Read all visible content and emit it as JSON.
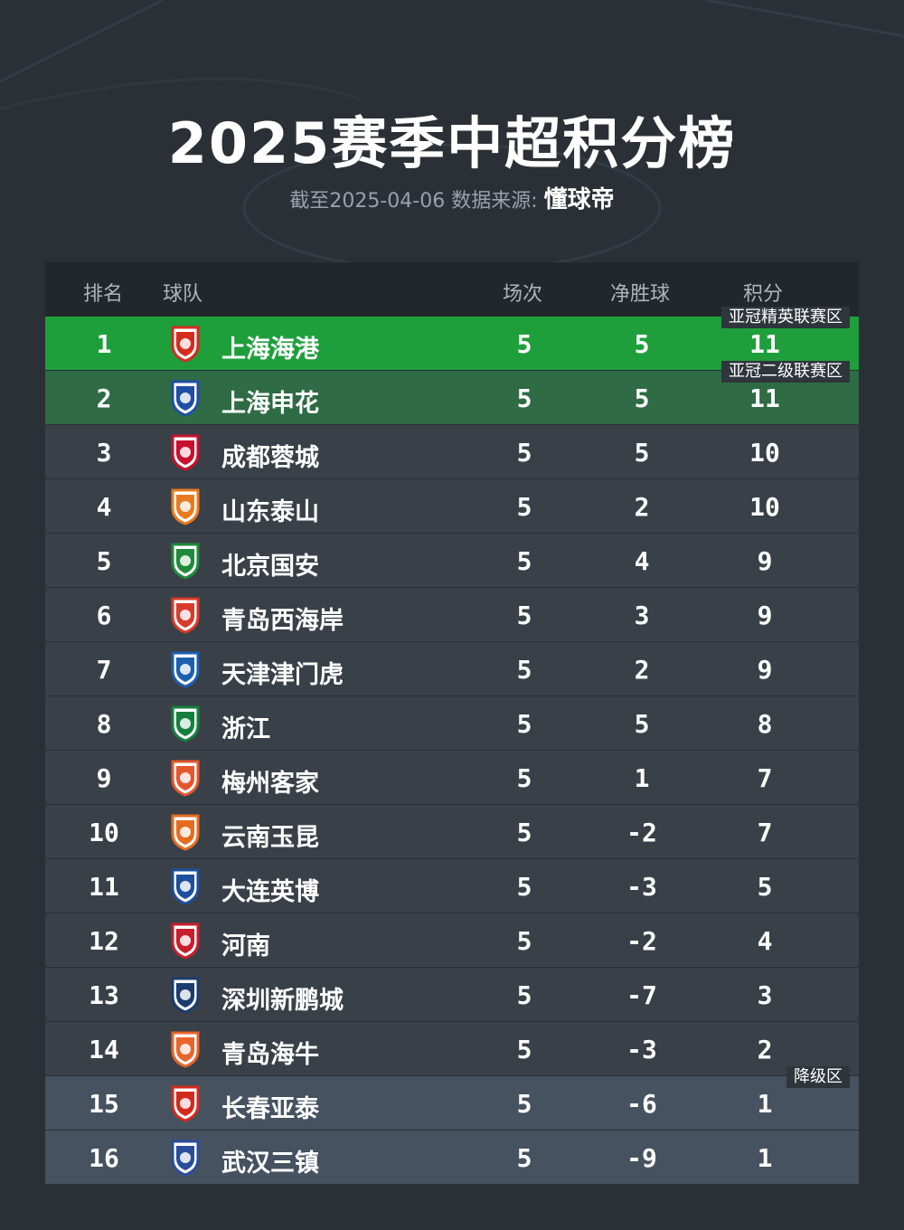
{
  "header": {
    "title": "2025赛季中超积分榜",
    "subtitle_prefix": "截至2025-04-06 数据来源:",
    "brand": "懂球帝"
  },
  "columns": {
    "rank": "排名",
    "team": "球队",
    "played": "场次",
    "gd": "净胜球",
    "pts": "积分"
  },
  "zones": {
    "acl_elite": "亚冠精英联赛区",
    "acl_two": "亚冠二级联赛区",
    "relegation": "降级区"
  },
  "colors": {
    "acl_elite": "#1e9f3c",
    "acl_two": "#2f6b44",
    "relegation": "#465260",
    "row": "#3a4048",
    "background": "#2b3036"
  },
  "rows": [
    {
      "rank": "1",
      "team": "上海海港",
      "played": "5",
      "gd": "5",
      "pts": "11",
      "logo_color": "#d52b1e",
      "logo_icon": "shanghai-port-logo"
    },
    {
      "rank": "2",
      "team": "上海申花",
      "played": "5",
      "gd": "5",
      "pts": "11",
      "logo_color": "#1f4ea3",
      "logo_icon": "shanghai-shenhua-logo"
    },
    {
      "rank": "3",
      "team": "成都蓉城",
      "played": "5",
      "gd": "5",
      "pts": "10",
      "logo_color": "#c8102e",
      "logo_icon": "chengdu-rongcheng-logo"
    },
    {
      "rank": "4",
      "team": "山东泰山",
      "played": "5",
      "gd": "2",
      "pts": "10",
      "logo_color": "#e97b1f",
      "logo_icon": "shandong-taishan-logo"
    },
    {
      "rank": "5",
      "team": "北京国安",
      "played": "5",
      "gd": "4",
      "pts": "9",
      "logo_color": "#1f8a3a",
      "logo_icon": "beijing-guoan-logo"
    },
    {
      "rank": "6",
      "team": "青岛西海岸",
      "played": "5",
      "gd": "3",
      "pts": "9",
      "logo_color": "#d83a2b",
      "logo_icon": "qingdao-west-coast-logo"
    },
    {
      "rank": "7",
      "team": "天津津门虎",
      "played": "5",
      "gd": "2",
      "pts": "9",
      "logo_color": "#1c5fb0",
      "logo_icon": "tianjin-tiger-logo"
    },
    {
      "rank": "8",
      "team": "浙江",
      "played": "5",
      "gd": "5",
      "pts": "8",
      "logo_color": "#15803d",
      "logo_icon": "zhejiang-logo"
    },
    {
      "rank": "9",
      "team": "梅州客家",
      "played": "5",
      "gd": "1",
      "pts": "7",
      "logo_color": "#e4572e",
      "logo_icon": "meizhou-hakka-logo"
    },
    {
      "rank": "10",
      "team": "云南玉昆",
      "played": "5",
      "gd": "-2",
      "pts": "7",
      "logo_color": "#e56b1f",
      "logo_icon": "yunnan-yukun-logo"
    },
    {
      "rank": "11",
      "team": "大连英博",
      "played": "5",
      "gd": "-3",
      "pts": "5",
      "logo_color": "#1d4f9c",
      "logo_icon": "dalian-yingbo-logo"
    },
    {
      "rank": "12",
      "team": "河南",
      "played": "5",
      "gd": "-2",
      "pts": "4",
      "logo_color": "#c81e2b",
      "logo_icon": "henan-logo"
    },
    {
      "rank": "13",
      "team": "深圳新鹏城",
      "played": "5",
      "gd": "-7",
      "pts": "3",
      "logo_color": "#1b3d6e",
      "logo_icon": "shenzhen-peng-city-logo"
    },
    {
      "rank": "14",
      "team": "青岛海牛",
      "played": "5",
      "gd": "-3",
      "pts": "2",
      "logo_color": "#e8642a",
      "logo_icon": "qingdao-hainiu-logo"
    },
    {
      "rank": "15",
      "team": "长春亚泰",
      "played": "5",
      "gd": "-6",
      "pts": "1",
      "logo_color": "#d32a1e",
      "logo_icon": "changchun-yatai-logo"
    },
    {
      "rank": "16",
      "team": "武汉三镇",
      "played": "5",
      "gd": "-9",
      "pts": "1",
      "logo_color": "#2a4d9b",
      "logo_icon": "wuhan-three-towns-logo"
    }
  ]
}
